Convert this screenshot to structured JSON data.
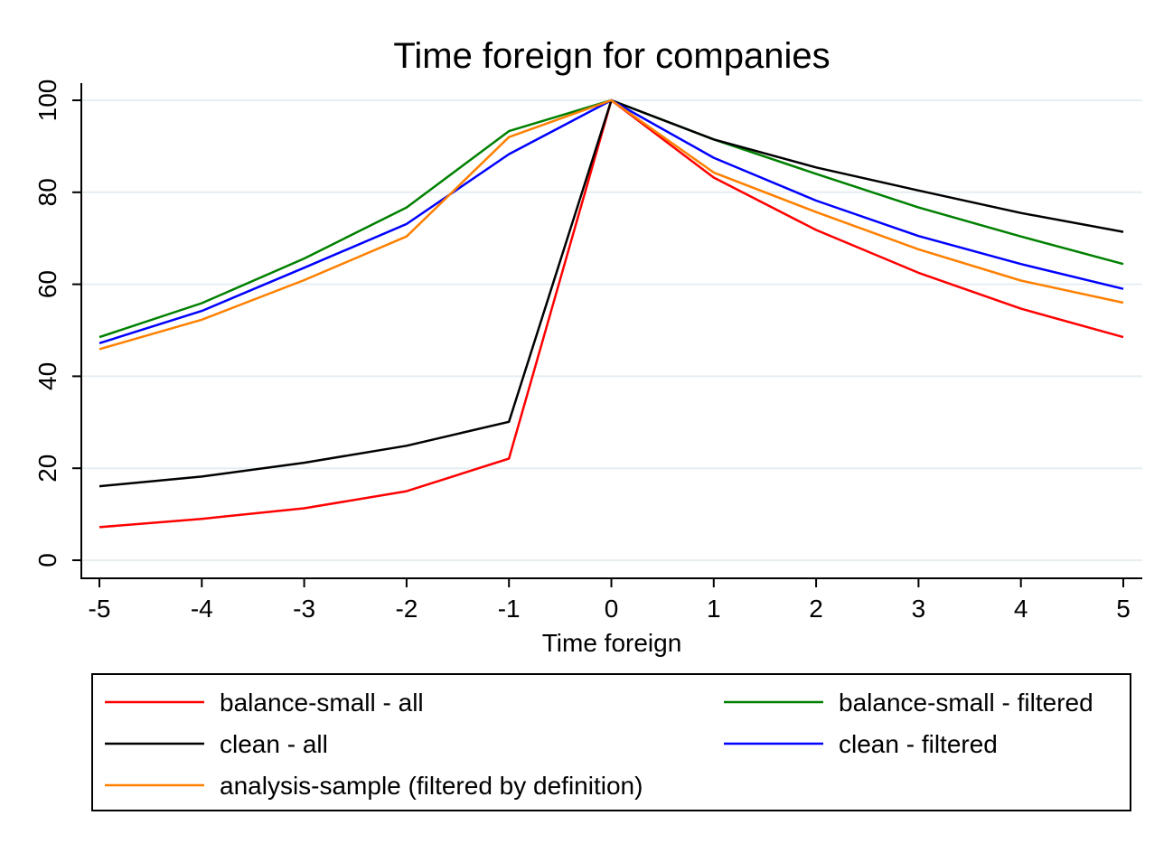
{
  "chart_data": {
    "type": "line",
    "title": "Time foreign for companies",
    "xlabel": "Time foreign",
    "ylabel": "",
    "x": [
      -5,
      -4,
      -3,
      -2,
      -1,
      0,
      1,
      2,
      3,
      4,
      5
    ],
    "xticks": [
      "-5",
      "-4",
      "-3",
      "-2",
      "-1",
      "0",
      "1",
      "2",
      "3",
      "4",
      "5"
    ],
    "yticks": [
      "0",
      "20",
      "40",
      "60",
      "80",
      "100"
    ],
    "xlim": [
      -5,
      5
    ],
    "ylim": [
      0,
      100
    ],
    "grid": "horizontal",
    "legend_position": "bottom",
    "series": [
      {
        "name": "balance-small - all",
        "color": "#ff0000",
        "values": [
          7.2,
          9.0,
          11.3,
          15.0,
          22.1,
          100,
          83.2,
          71.8,
          62.5,
          54.7,
          48.5
        ]
      },
      {
        "name": "balance-small - filtered",
        "color": "#008000",
        "values": [
          48.5,
          55.9,
          65.6,
          76.7,
          93.3,
          100,
          91.5,
          84.0,
          76.7,
          70.4,
          64.4
        ]
      },
      {
        "name": "clean - all",
        "color": "#000000",
        "values": [
          16.1,
          18.2,
          21.2,
          24.9,
          30.1,
          100,
          91.5,
          85.4,
          80.4,
          75.5,
          71.4
        ]
      },
      {
        "name": "clean - filtered",
        "color": "#0000ff",
        "values": [
          47.2,
          54.2,
          63.6,
          73.1,
          88.3,
          100,
          87.5,
          78.2,
          70.5,
          64.4,
          59.0
        ]
      },
      {
        "name": "analysis-sample (filtered by definition)",
        "color": "#ff8000",
        "values": [
          45.9,
          52.3,
          60.9,
          70.4,
          92.0,
          100,
          84.3,
          75.7,
          67.6,
          60.8,
          56.0
        ]
      }
    ]
  }
}
